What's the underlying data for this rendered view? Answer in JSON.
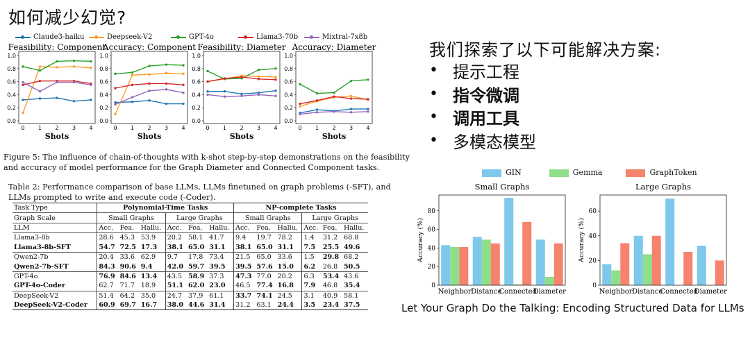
{
  "slide": {
    "title": "如何减少幻觉?",
    "right_heading": "我们探索了以下可能解决方案:",
    "bullets": [
      {
        "text": "提示工程",
        "bold": false
      },
      {
        "text": "指令微调",
        "bold": true
      },
      {
        "text": "调用工具",
        "bold": true
      },
      {
        "text": "多模态模型",
        "bold": false
      }
    ],
    "paper_title": "Let Your Graph Do the Talking: Encoding Structured Data for LLMs"
  },
  "figure5": {
    "caption_line1": "Figure 5: The influence of chain-of-thoughts with k-shot step-by-step demonstrations on the feasibility",
    "caption_line2": "and accuracy of model performance for the Graph Diameter and Connected Component tasks."
  },
  "table2": {
    "caption_line1": "Table 2: Performance comparison of base LLMs, LLMs finetuned on graph problems (-SFT), and",
    "caption_line2": "LLMs prompted to write and execute code (-Coder).",
    "h_task_type": "Task Type",
    "h_poly": "Polynomial-Time Tasks",
    "h_np": "NP-complete Tasks",
    "h_graph_scale": "Graph Scale",
    "h_small": "Small Graphs",
    "h_large": "Large Graphs",
    "h_llm": "LLM",
    "metrics": [
      "Acc.",
      "Fea.",
      "Hallu."
    ],
    "rows": [
      {
        "name": "Llama3-8b",
        "bold": false,
        "vals": [
          "28.6",
          "45.3",
          "53.9",
          "20.2",
          "58.1",
          "41.7",
          "9.4",
          "19.7",
          "78.2",
          "1.4",
          "31.2",
          "68.8"
        ],
        "b": []
      },
      {
        "name": "Llama3-8b-SFT",
        "bold": true,
        "vals": [
          "54.7",
          "72.5",
          "17.3",
          "38.1",
          "65.0",
          "31.1",
          "38.1",
          "65.0",
          "31.1",
          "7.5",
          "25.5",
          "49.6"
        ],
        "b": [
          0,
          1,
          2,
          3,
          4,
          5,
          6,
          7,
          8,
          9,
          10,
          11
        ]
      },
      {
        "name": "Qwen2-7b",
        "bold": false,
        "vals": [
          "20.4",
          "33.6",
          "62.9",
          "9.7",
          "17.8",
          "73.4",
          "21.5",
          "65.0",
          "33.6",
          "1.5",
          "29.8",
          "68.2"
        ],
        "b": [
          10
        ]
      },
      {
        "name": "Qwen2-7b-SFT",
        "bold": true,
        "vals": [
          "84.3",
          "90.6",
          "9.4",
          "42.0",
          "59.7",
          "39.5",
          "39.5",
          "57.6",
          "15.0",
          "6.2",
          "26.8",
          "50.5"
        ],
        "b": [
          0,
          1,
          2,
          3,
          4,
          5,
          6,
          7,
          8,
          9,
          11
        ]
      },
      {
        "name": "GPT-4o",
        "bold": false,
        "vals": [
          "76.9",
          "84.6",
          "13.4",
          "43.5",
          "58.9",
          "37.3",
          "47.3",
          "77.0",
          "20.2",
          "6.3",
          "53.4",
          "43.6"
        ],
        "b": [
          0,
          1,
          2,
          4,
          6,
          10
        ]
      },
      {
        "name": "GPT-4o-Coder",
        "bold": true,
        "vals": [
          "62.7",
          "71.7",
          "18.9",
          "51.1",
          "62.0",
          "23.0",
          "46.5",
          "77.4",
          "16.8",
          "7.9",
          "46.8",
          "35.4"
        ],
        "b": [
          3,
          4,
          5,
          7,
          8,
          9,
          11
        ]
      },
      {
        "name": "DeepSeek-V2",
        "bold": false,
        "vals": [
          "51.4",
          "64.2",
          "35.0",
          "24.7",
          "37.9",
          "61.1",
          "33.7",
          "74.1",
          "24.5",
          "3.1",
          "40.9",
          "58.1"
        ],
        "b": [
          6,
          7
        ]
      },
      {
        "name": "DeepSeek-V2-Coder",
        "bold": true,
        "vals": [
          "60.9",
          "69.7",
          "16.7",
          "38.0",
          "44.6",
          "31.4",
          "31.2",
          "63.1",
          "24.4",
          "3.5",
          "23.4",
          "37.5"
        ],
        "b": [
          0,
          1,
          2,
          3,
          4,
          5,
          8,
          9,
          10,
          11
        ]
      }
    ]
  },
  "chart_data": [
    {
      "type": "line",
      "title": "Feasibility: Component",
      "xlabel": "Shots",
      "x": [
        0,
        1,
        2,
        3,
        4
      ],
      "xticks": [
        "0",
        "1",
        "2",
        "3",
        "4"
      ],
      "ylim": [
        0,
        1
      ],
      "yticks": [
        "0.0",
        "0.2",
        "0.4",
        "0.6",
        "0.8",
        "1.0"
      ],
      "series": [
        {
          "name": "Claude3-haiku",
          "color": "#1f77b4",
          "values": [
            0.32,
            0.34,
            0.35,
            0.3,
            0.32
          ]
        },
        {
          "name": "Deepseek-V2",
          "color": "#ff9e2c",
          "values": [
            0.12,
            0.83,
            0.82,
            0.83,
            0.81
          ]
        },
        {
          "name": "GPT-4o",
          "color": "#2ca02c",
          "values": [
            0.83,
            0.77,
            0.91,
            0.92,
            0.91
          ]
        },
        {
          "name": "Llama3-70b",
          "color": "#d62728",
          "values": [
            0.55,
            0.61,
            0.61,
            0.61,
            0.57
          ]
        },
        {
          "name": "Mixtral-7x8b",
          "color": "#9467bd",
          "values": [
            0.59,
            0.45,
            0.59,
            0.59,
            0.55
          ]
        }
      ]
    },
    {
      "type": "line",
      "title": "Accuracy: Component",
      "xlabel": "Shots",
      "x": [
        0,
        1,
        2,
        3,
        4
      ],
      "xticks": [
        "0",
        "1",
        "2",
        "3",
        "4"
      ],
      "ylim": [
        0,
        1
      ],
      "yticks": [
        "0.0",
        "0.2",
        "0.4",
        "0.6",
        "0.8",
        "1.0"
      ],
      "series": [
        {
          "name": "Claude3-haiku",
          "color": "#1f77b4",
          "values": [
            0.28,
            0.29,
            0.31,
            0.26,
            0.26
          ]
        },
        {
          "name": "Deepseek-V2",
          "color": "#ff9e2c",
          "values": [
            0.1,
            0.7,
            0.71,
            0.73,
            0.72
          ]
        },
        {
          "name": "GPT-4o",
          "color": "#2ca02c",
          "values": [
            0.72,
            0.74,
            0.84,
            0.86,
            0.85
          ]
        },
        {
          "name": "Llama3-70b",
          "color": "#d62728",
          "values": [
            0.5,
            0.55,
            0.57,
            0.57,
            0.55
          ]
        },
        {
          "name": "Mixtral-7x8b",
          "color": "#9467bd",
          "values": [
            0.25,
            0.36,
            0.46,
            0.48,
            0.43
          ]
        }
      ]
    },
    {
      "type": "line",
      "title": "Feasibility: Diameter",
      "xlabel": "Shots",
      "x": [
        0,
        1,
        2,
        3,
        4
      ],
      "xticks": [
        "0",
        "1",
        "2",
        "3",
        "4"
      ],
      "ylim": [
        0,
        1
      ],
      "yticks": [
        "0.0",
        "0.2",
        "0.4",
        "0.6",
        "0.8",
        "1.0"
      ],
      "series": [
        {
          "name": "Claude3-haiku",
          "color": "#1f77b4",
          "values": [
            0.45,
            0.45,
            0.41,
            0.43,
            0.46
          ]
        },
        {
          "name": "Deepseek-V2",
          "color": "#ff9e2c",
          "values": [
            0.6,
            0.64,
            0.69,
            0.68,
            0.67
          ]
        },
        {
          "name": "GPT-4o",
          "color": "#2ca02c",
          "values": [
            0.76,
            0.64,
            0.65,
            0.78,
            0.8
          ]
        },
        {
          "name": "Llama3-70b",
          "color": "#d62728",
          "values": [
            0.6,
            0.65,
            0.67,
            0.64,
            0.63
          ]
        },
        {
          "name": "Mixtral-7x8b",
          "color": "#9467bd",
          "values": [
            0.4,
            0.37,
            0.38,
            0.4,
            0.38
          ]
        }
      ]
    },
    {
      "type": "line",
      "title": "Accuracy: Diameter",
      "xlabel": "Shots",
      "x": [
        0,
        1,
        2,
        3,
        4
      ],
      "xticks": [
        "0",
        "1",
        "2",
        "3",
        "4"
      ],
      "ylim": [
        0,
        1
      ],
      "yticks": [
        "0.0",
        "0.2",
        "0.4",
        "0.6",
        "0.8",
        "1.0"
      ],
      "series": [
        {
          "name": "Claude3-haiku",
          "color": "#1f77b4",
          "values": [
            0.12,
            0.17,
            0.15,
            0.18,
            0.18
          ]
        },
        {
          "name": "Deepseek-V2",
          "color": "#ff9e2c",
          "values": [
            0.22,
            0.3,
            0.36,
            0.38,
            0.32
          ]
        },
        {
          "name": "GPT-4o",
          "color": "#2ca02c",
          "values": [
            0.56,
            0.42,
            0.43,
            0.61,
            0.63
          ]
        },
        {
          "name": "Llama3-70b",
          "color": "#d62728",
          "values": [
            0.26,
            0.31,
            0.37,
            0.34,
            0.33
          ]
        },
        {
          "name": "Mixtral-7x8b",
          "color": "#9467bd",
          "values": [
            0.1,
            0.13,
            0.14,
            0.13,
            0.14
          ]
        }
      ]
    },
    {
      "type": "bar",
      "title": "Small Graphs",
      "ylabel": "Accuracy (%)",
      "categories": [
        "Neighbor",
        "Distance",
        "Connected",
        "Diameter"
      ],
      "ylim": [
        0,
        97
      ],
      "yticks": [
        "0",
        "20",
        "40",
        "60",
        "80"
      ],
      "series": [
        {
          "name": "GIN",
          "color": "#7ec8ec",
          "values": [
            43,
            52,
            94,
            49
          ]
        },
        {
          "name": "Gemma",
          "color": "#8fde8a",
          "values": [
            41,
            49,
            1,
            9
          ]
        },
        {
          "name": "GraphToken",
          "color": "#f6836d",
          "values": [
            41,
            45,
            68,
            45
          ]
        }
      ]
    },
    {
      "type": "bar",
      "title": "Large Graphs",
      "ylabel": "Accuracy (%)",
      "categories": [
        "Neighbor",
        "Distance",
        "Connected",
        "Diameter"
      ],
      "ylim": [
        0,
        73
      ],
      "yticks": [
        "0",
        "20",
        "40",
        "60"
      ],
      "series": [
        {
          "name": "GIN",
          "color": "#7ec8ec",
          "values": [
            17,
            40,
            70,
            32
          ]
        },
        {
          "name": "Gemma",
          "color": "#8fde8a",
          "values": [
            12,
            25,
            0,
            0
          ]
        },
        {
          "name": "GraphToken",
          "color": "#f6836d",
          "values": [
            34,
            40,
            27,
            20
          ]
        }
      ]
    }
  ]
}
